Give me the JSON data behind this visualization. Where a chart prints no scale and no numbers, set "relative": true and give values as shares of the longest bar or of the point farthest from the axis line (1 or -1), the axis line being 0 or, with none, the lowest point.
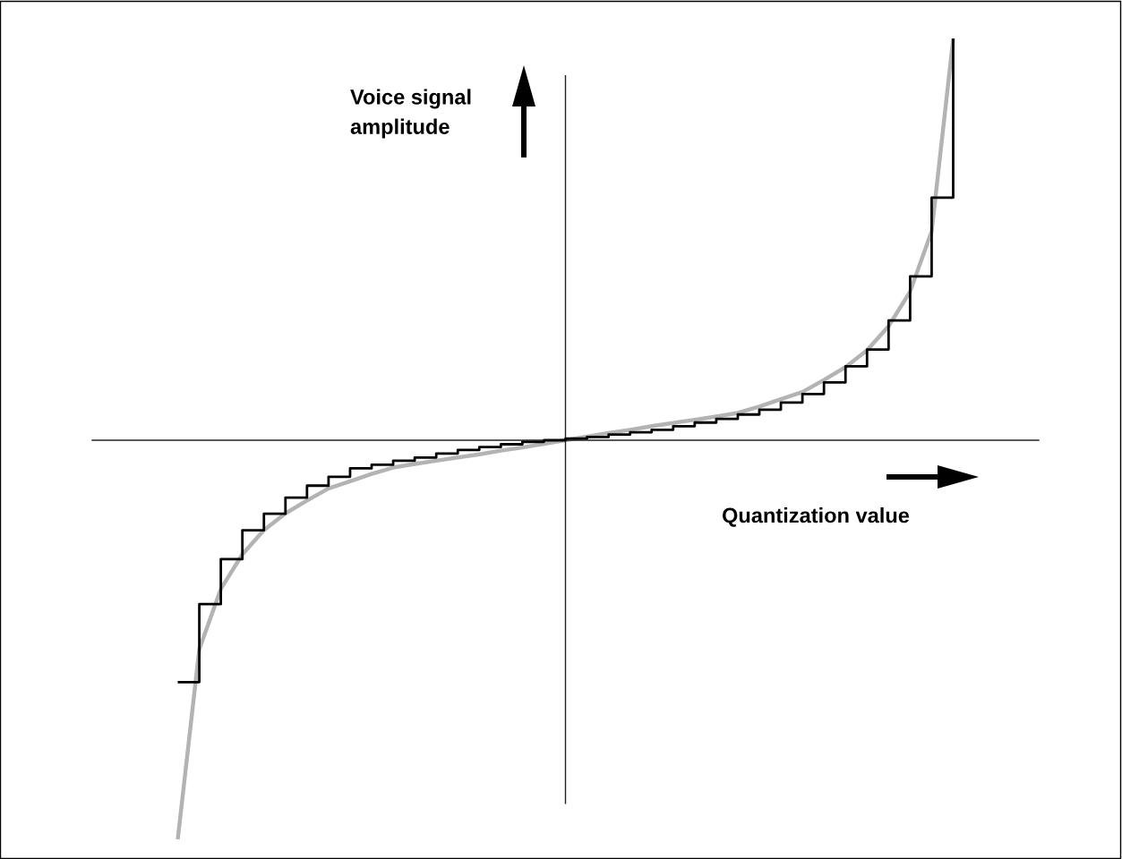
{
  "chart_data": {
    "type": "line",
    "relative": true,
    "xlabel": "Quantization value",
    "ylabel": "Voice signal\namplitude",
    "categories": [
      null,
      null,
      null,
      null,
      null,
      null,
      null,
      null,
      null,
      null,
      null,
      null,
      null,
      null,
      null,
      null,
      null,
      null,
      null,
      null,
      null,
      null,
      null,
      null,
      null,
      null,
      null,
      null,
      null,
      null,
      null,
      null,
      null,
      null,
      null,
      null,
      null
    ],
    "series": [
      {
        "type": "step",
        "color": "#000000",
        "values": [
          -0.602,
          -0.408,
          -0.296,
          -0.224,
          -0.183,
          -0.143,
          -0.113,
          -0.091,
          -0.07,
          -0.061,
          -0.051,
          -0.043,
          -0.033,
          -0.024,
          -0.017,
          -0.01,
          -0.004,
          0,
          0.004,
          0.008,
          0.014,
          0.02,
          0.026,
          0.035,
          0.044,
          0.053,
          0.064,
          0.076,
          0.094,
          0.115,
          0.144,
          0.184,
          0.226,
          0.298,
          0.408,
          0.604,
          1.0
        ]
      },
      {
        "color": "#b3b3b3",
        "values": [
          -0.993,
          -0.52,
          -0.37,
          -0.284,
          -0.224,
          -0.182,
          -0.15,
          -0.12,
          -0.102,
          -0.084,
          -0.068,
          -0.059,
          -0.051,
          -0.043,
          -0.035,
          -0.026,
          -0.018,
          -0.009,
          0,
          0.009,
          0.018,
          0.026,
          0.035,
          0.043,
          0.051,
          0.059,
          0.068,
          0.084,
          0.102,
          0.12,
          0.15,
          0.182,
          0.224,
          0.284,
          0.37,
          0.52,
          0.999
        ]
      }
    ]
  }
}
